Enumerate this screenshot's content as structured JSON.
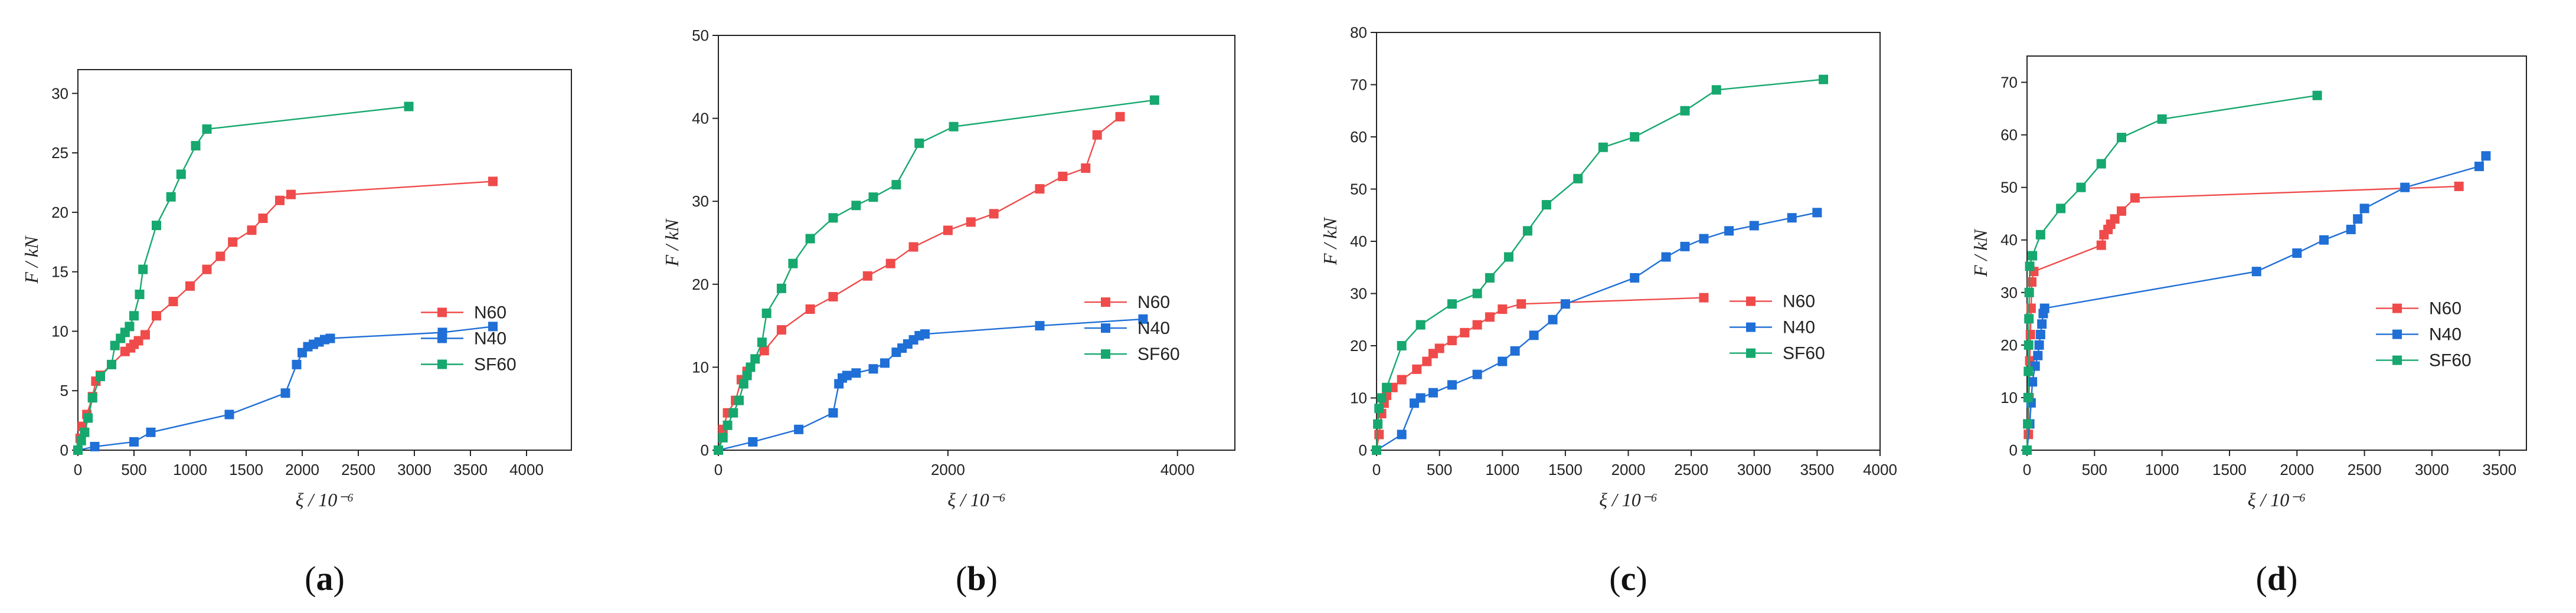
{
  "figure": {
    "series_colors": {
      "N60": "#ef4b4b",
      "N40": "#1f6fd6",
      "SF60": "#16a86e"
    }
  },
  "chart_data": [
    {
      "panel_label": "a",
      "type": "line",
      "xlabel": "ξ / 10⁻⁶",
      "ylabel": "F / kN",
      "xlim": [
        0,
        4400
      ],
      "ylim": [
        0,
        32
      ],
      "xticks": [
        0,
        500,
        1000,
        1500,
        2000,
        2500,
        3000,
        3500,
        4000
      ],
      "yticks": [
        0,
        5,
        10,
        15,
        20,
        25,
        30
      ],
      "legend_position": "right-middle",
      "series": [
        {
          "name": "N60",
          "points": [
            [
              0,
              0
            ],
            [
              20,
              1
            ],
            [
              40,
              2
            ],
            [
              80,
              3
            ],
            [
              130,
              4.5
            ],
            [
              160,
              5.8
            ],
            [
              200,
              6.3
            ],
            [
              420,
              8.3
            ],
            [
              470,
              8.6
            ],
            [
              500,
              8.9
            ],
            [
              540,
              9.2
            ],
            [
              600,
              9.7
            ],
            [
              700,
              11.3
            ],
            [
              850,
              12.5
            ],
            [
              1000,
              13.8
            ],
            [
              1150,
              15.2
            ],
            [
              1270,
              16.3
            ],
            [
              1380,
              17.5
            ],
            [
              1550,
              18.5
            ],
            [
              1650,
              19.5
            ],
            [
              1800,
              21.0
            ],
            [
              1900,
              21.5
            ],
            [
              3700,
              22.6
            ]
          ]
        },
        {
          "name": "N40",
          "points": [
            [
              0,
              0
            ],
            [
              150,
              0.3
            ],
            [
              500,
              0.7
            ],
            [
              650,
              1.5
            ],
            [
              1350,
              3.0
            ],
            [
              1850,
              4.8
            ],
            [
              1950,
              7.2
            ],
            [
              2000,
              8.2
            ],
            [
              2050,
              8.7
            ],
            [
              2100,
              8.9
            ],
            [
              2150,
              9.1
            ],
            [
              2200,
              9.3
            ],
            [
              2250,
              9.4
            ],
            [
              3250,
              9.9
            ],
            [
              3700,
              10.4
            ]
          ]
        },
        {
          "name": "SF60",
          "points": [
            [
              0,
              0
            ],
            [
              30,
              0.8
            ],
            [
              60,
              1.5
            ],
            [
              90,
              2.7
            ],
            [
              130,
              4.4
            ],
            [
              200,
              6.2
            ],
            [
              300,
              7.2
            ],
            [
              330,
              8.8
            ],
            [
              380,
              9.4
            ],
            [
              420,
              9.9
            ],
            [
              460,
              10.4
            ],
            [
              500,
              11.3
            ],
            [
              550,
              13.1
            ],
            [
              580,
              15.2
            ],
            [
              700,
              18.9
            ],
            [
              830,
              21.3
            ],
            [
              920,
              23.2
            ],
            [
              1050,
              25.6
            ],
            [
              1150,
              27.0
            ],
            [
              2950,
              28.9
            ]
          ]
        }
      ]
    },
    {
      "panel_label": "b",
      "type": "line",
      "xlabel": "ξ / 10⁻⁶",
      "ylabel": "F / kN",
      "xlim": [
        0,
        4500
      ],
      "ylim": [
        0,
        50
      ],
      "xticks": [
        0,
        2000,
        4000
      ],
      "yticks": [
        0,
        10,
        20,
        30,
        40,
        50
      ],
      "legend_position": "right-middle",
      "series": [
        {
          "name": "N60",
          "points": [
            [
              0,
              0
            ],
            [
              40,
              2.5
            ],
            [
              80,
              4.5
            ],
            [
              150,
              6
            ],
            [
              200,
              8.5
            ],
            [
              250,
              9.5
            ],
            [
              400,
              12
            ],
            [
              550,
              14.5
            ],
            [
              800,
              17
            ],
            [
              1000,
              18.5
            ],
            [
              1300,
              21
            ],
            [
              1500,
              22.5
            ],
            [
              1700,
              24.5
            ],
            [
              2000,
              26.5
            ],
            [
              2200,
              27.5
            ],
            [
              2400,
              28.5
            ],
            [
              2800,
              31.5
            ],
            [
              3000,
              33
            ],
            [
              3200,
              34
            ],
            [
              3300,
              38
            ],
            [
              3500,
              40.2
            ]
          ]
        },
        {
          "name": "N40",
          "points": [
            [
              0,
              0
            ],
            [
              300,
              1
            ],
            [
              700,
              2.5
            ],
            [
              1000,
              4.5
            ],
            [
              1050,
              8
            ],
            [
              1080,
              8.7
            ],
            [
              1120,
              9
            ],
            [
              1200,
              9.3
            ],
            [
              1350,
              9.8
            ],
            [
              1450,
              10.5
            ],
            [
              1550,
              11.8
            ],
            [
              1600,
              12.3
            ],
            [
              1650,
              12.8
            ],
            [
              1700,
              13.3
            ],
            [
              1750,
              13.8
            ],
            [
              1800,
              14
            ],
            [
              2800,
              15
            ],
            [
              3700,
              15.8
            ]
          ]
        },
        {
          "name": "SF60",
          "points": [
            [
              0,
              0
            ],
            [
              40,
              1.5
            ],
            [
              80,
              3
            ],
            [
              130,
              4.5
            ],
            [
              180,
              6
            ],
            [
              220,
              8
            ],
            [
              250,
              9
            ],
            [
              280,
              10
            ],
            [
              320,
              11
            ],
            [
              380,
              13
            ],
            [
              420,
              16.5
            ],
            [
              550,
              19.5
            ],
            [
              650,
              22.5
            ],
            [
              800,
              25.5
            ],
            [
              1000,
              28
            ],
            [
              1200,
              29.5
            ],
            [
              1350,
              30.5
            ],
            [
              1550,
              32
            ],
            [
              1750,
              37
            ],
            [
              2050,
              39
            ],
            [
              3800,
              42.2
            ]
          ]
        }
      ]
    },
    {
      "panel_label": "c",
      "type": "line",
      "xlabel": "ξ / 10⁻⁶",
      "ylabel": "F / kN",
      "xlim": [
        0,
        4000
      ],
      "ylim": [
        0,
        80
      ],
      "xticks": [
        0,
        500,
        1000,
        1500,
        2000,
        2500,
        3000,
        3500,
        4000
      ],
      "yticks": [
        0,
        10,
        20,
        30,
        40,
        50,
        60,
        70,
        80
      ],
      "legend_position": "right-middle",
      "series": [
        {
          "name": "N60",
          "points": [
            [
              0,
              0
            ],
            [
              20,
              3
            ],
            [
              40,
              7
            ],
            [
              60,
              9
            ],
            [
              80,
              10.5
            ],
            [
              130,
              12
            ],
            [
              200,
              13.5
            ],
            [
              320,
              15.5
            ],
            [
              400,
              17
            ],
            [
              450,
              18.5
            ],
            [
              500,
              19.5
            ],
            [
              600,
              21
            ],
            [
              700,
              22.5
            ],
            [
              800,
              24
            ],
            [
              900,
              25.5
            ],
            [
              1000,
              27
            ],
            [
              1150,
              28
            ],
            [
              2600,
              29.2
            ]
          ]
        },
        {
          "name": "N40",
          "points": [
            [
              0,
              0
            ],
            [
              200,
              3
            ],
            [
              300,
              9
            ],
            [
              350,
              10
            ],
            [
              450,
              11
            ],
            [
              600,
              12.5
            ],
            [
              800,
              14.5
            ],
            [
              1000,
              17
            ],
            [
              1100,
              19
            ],
            [
              1250,
              22
            ],
            [
              1400,
              25
            ],
            [
              1500,
              28
            ],
            [
              2050,
              33
            ],
            [
              2300,
              37
            ],
            [
              2450,
              39
            ],
            [
              2600,
              40.5
            ],
            [
              2800,
              42
            ],
            [
              3000,
              43
            ],
            [
              3300,
              44.5
            ],
            [
              3500,
              45.5
            ]
          ]
        },
        {
          "name": "SF60",
          "points": [
            [
              0,
              0
            ],
            [
              10,
              5
            ],
            [
              20,
              8
            ],
            [
              40,
              10
            ],
            [
              80,
              12
            ],
            [
              200,
              20
            ],
            [
              350,
              24
            ],
            [
              600,
              28
            ],
            [
              800,
              30
            ],
            [
              900,
              33
            ],
            [
              1050,
              37
            ],
            [
              1200,
              42
            ],
            [
              1350,
              47
            ],
            [
              1600,
              52
            ],
            [
              1800,
              58
            ],
            [
              2050,
              60
            ],
            [
              2450,
              65
            ],
            [
              2700,
              69
            ],
            [
              3550,
              71
            ]
          ]
        }
      ]
    },
    {
      "panel_label": "d",
      "type": "line",
      "xlabel": "ξ / 10⁻⁶",
      "ylabel": "F / kN",
      "xlim": [
        0,
        3700
      ],
      "ylim": [
        0,
        75
      ],
      "xticks": [
        0,
        500,
        1000,
        1500,
        2000,
        2500,
        3000,
        3500
      ],
      "yticks": [
        0,
        10,
        20,
        30,
        40,
        50,
        60,
        70
      ],
      "legend_position": "right-middle",
      "series": [
        {
          "name": "N60",
          "points": [
            [
              0,
              0
            ],
            [
              10,
              3
            ],
            [
              15,
              10
            ],
            [
              20,
              17
            ],
            [
              25,
              22
            ],
            [
              30,
              27
            ],
            [
              35,
              32
            ],
            [
              50,
              34
            ],
            [
              550,
              39
            ],
            [
              570,
              41
            ],
            [
              600,
              42
            ],
            [
              620,
              43
            ],
            [
              650,
              44
            ],
            [
              700,
              45.5
            ],
            [
              800,
              48
            ],
            [
              3200,
              50.2
            ]
          ]
        },
        {
          "name": "N40",
          "points": [
            [
              0,
              0
            ],
            [
              20,
              5
            ],
            [
              30,
              9
            ],
            [
              40,
              13
            ],
            [
              60,
              16
            ],
            [
              80,
              18
            ],
            [
              90,
              20
            ],
            [
              100,
              22
            ],
            [
              110,
              24
            ],
            [
              120,
              26
            ],
            [
              130,
              27
            ],
            [
              1700,
              34
            ],
            [
              2000,
              37.5
            ],
            [
              2200,
              40
            ],
            [
              2400,
              42
            ],
            [
              2450,
              44
            ],
            [
              2500,
              46
            ],
            [
              2800,
              50
            ],
            [
              3350,
              54
            ],
            [
              3400,
              56
            ]
          ]
        },
        {
          "name": "SF60",
          "points": [
            [
              0,
              0
            ],
            [
              5,
              5
            ],
            [
              8,
              10
            ],
            [
              10,
              15
            ],
            [
              12,
              20
            ],
            [
              14,
              25
            ],
            [
              16,
              30
            ],
            [
              20,
              35
            ],
            [
              40,
              37
            ],
            [
              100,
              41
            ],
            [
              250,
              46
            ],
            [
              400,
              50
            ],
            [
              550,
              54.5
            ],
            [
              700,
              59.5
            ],
            [
              1000,
              63
            ],
            [
              2150,
              67.5
            ]
          ]
        }
      ]
    }
  ]
}
